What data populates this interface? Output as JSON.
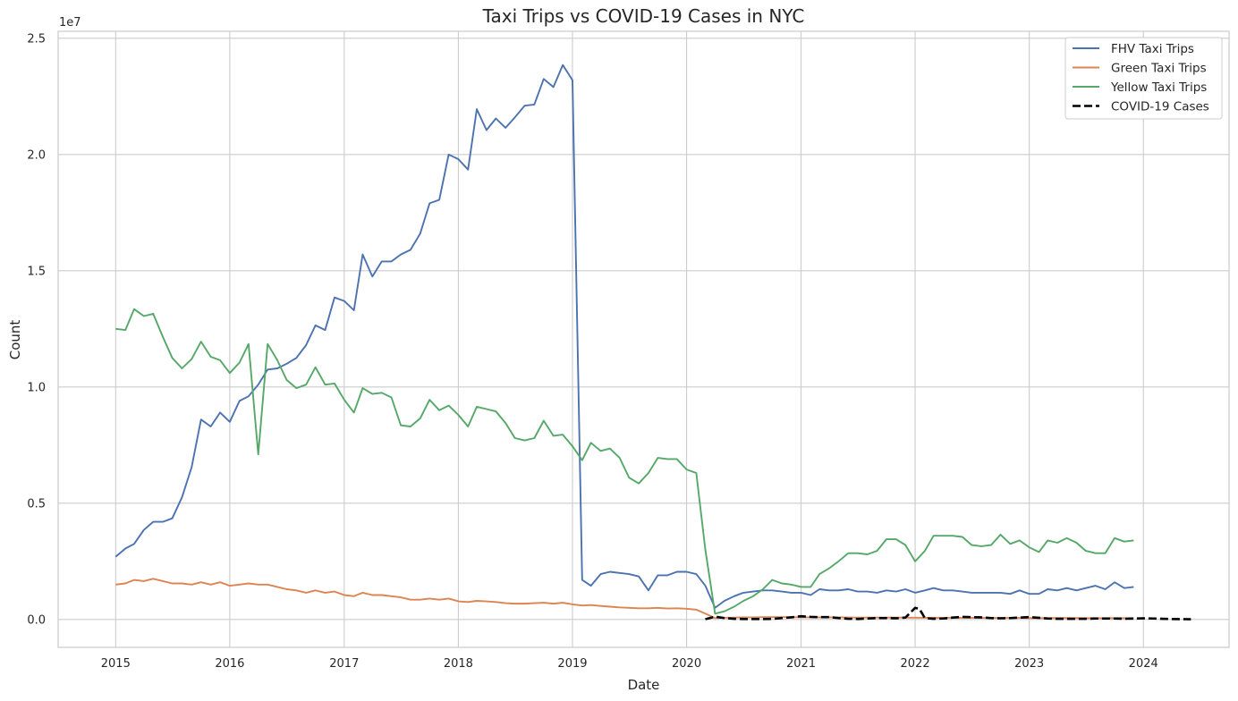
{
  "chart_data": {
    "type": "line",
    "title": "Taxi Trips vs COVID-19 Cases in NYC",
    "xlabel": "Date",
    "ylabel": "Count",
    "y_offset_label": "1e7",
    "y_ticks": [
      "0.0",
      "0.5",
      "1.0",
      "1.5",
      "2.0",
      "2.5"
    ],
    "x_ticks": [
      "2015",
      "2016",
      "2017",
      "2018",
      "2019",
      "2020",
      "2021",
      "2022",
      "2023",
      "2024"
    ],
    "xlim": [
      "2014-07-01",
      "2024-10-01"
    ],
    "ylim": [
      -1200000,
      25300000
    ],
    "grid": true,
    "legend_position": "top-right",
    "series": [
      {
        "name": "FHV Taxi Trips",
        "color": "#4c72b0",
        "style": "solid",
        "x": [
          "2015-01",
          "2015-02",
          "2015-03",
          "2015-04",
          "2015-05",
          "2015-06",
          "2015-07",
          "2015-08",
          "2015-09",
          "2015-10",
          "2015-11",
          "2015-12",
          "2016-01",
          "2016-02",
          "2016-03",
          "2016-04",
          "2016-05",
          "2016-06",
          "2016-07",
          "2016-08",
          "2016-09",
          "2016-10",
          "2016-11",
          "2016-12",
          "2017-01",
          "2017-02",
          "2017-03",
          "2017-04",
          "2017-05",
          "2017-06",
          "2017-07",
          "2017-08",
          "2017-09",
          "2017-10",
          "2017-11",
          "2017-12",
          "2018-01",
          "2018-02",
          "2018-03",
          "2018-04",
          "2018-05",
          "2018-06",
          "2018-07",
          "2018-08",
          "2018-09",
          "2018-10",
          "2018-11",
          "2018-12",
          "2019-01",
          "2019-02",
          "2019-03",
          "2019-04",
          "2019-05",
          "2019-06",
          "2019-07",
          "2019-08",
          "2019-09",
          "2019-10",
          "2019-11",
          "2019-12",
          "2020-01",
          "2020-02",
          "2020-03",
          "2020-04",
          "2020-05",
          "2020-06",
          "2020-07",
          "2020-08",
          "2020-09",
          "2020-10",
          "2020-11",
          "2020-12",
          "2021-01",
          "2021-02",
          "2021-03",
          "2021-04",
          "2021-05",
          "2021-06",
          "2021-07",
          "2021-08",
          "2021-09",
          "2021-10",
          "2021-11",
          "2021-12",
          "2022-01",
          "2022-02",
          "2022-03",
          "2022-04",
          "2022-05",
          "2022-06",
          "2022-07",
          "2022-08",
          "2022-09",
          "2022-10",
          "2022-11",
          "2022-12",
          "2023-01",
          "2023-02",
          "2023-03",
          "2023-04",
          "2023-05",
          "2023-06",
          "2023-07",
          "2023-08",
          "2023-09",
          "2023-10",
          "2023-11",
          "2023-12"
        ],
        "values": [
          2700000,
          3050000,
          3250000,
          3850000,
          4200000,
          4200000,
          4350000,
          5250000,
          6550000,
          8600000,
          8300000,
          8900000,
          8500000,
          9400000,
          9600000,
          10100000,
          10750000,
          10800000,
          11000000,
          11250000,
          11800000,
          12650000,
          12450000,
          13850000,
          13700000,
          13300000,
          15700000,
          14750000,
          15400000,
          15400000,
          15700000,
          15900000,
          16600000,
          17900000,
          18050000,
          20000000,
          19800000,
          19350000,
          21950000,
          21050000,
          21550000,
          21150000,
          21600000,
          22100000,
          22150000,
          23250000,
          22900000,
          23850000,
          23200000,
          1700000,
          1450000,
          1950000,
          2050000,
          2000000,
          1950000,
          1850000,
          1250000,
          1900000,
          1900000,
          2050000,
          2050000,
          1950000,
          1450000,
          500000,
          800000,
          1000000,
          1150000,
          1200000,
          1250000,
          1250000,
          1200000,
          1150000,
          1150000,
          1050000,
          1300000,
          1250000,
          1250000,
          1300000,
          1200000,
          1200000,
          1150000,
          1250000,
          1200000,
          1300000,
          1150000,
          1250000,
          1350000,
          1250000,
          1250000,
          1200000,
          1150000,
          1150000,
          1150000,
          1150000,
          1100000,
          1250000,
          1100000,
          1100000,
          1300000,
          1250000,
          1350000,
          1250000,
          1350000,
          1450000,
          1300000,
          1600000,
          1350000,
          1400000
        ]
      },
      {
        "name": "Green Taxi Trips",
        "color": "#dd8452",
        "style": "solid",
        "x": [
          "2015-01",
          "2015-02",
          "2015-03",
          "2015-04",
          "2015-05",
          "2015-06",
          "2015-07",
          "2015-08",
          "2015-09",
          "2015-10",
          "2015-11",
          "2015-12",
          "2016-01",
          "2016-02",
          "2016-03",
          "2016-04",
          "2016-05",
          "2016-06",
          "2016-07",
          "2016-08",
          "2016-09",
          "2016-10",
          "2016-11",
          "2016-12",
          "2017-01",
          "2017-02",
          "2017-03",
          "2017-04",
          "2017-05",
          "2017-06",
          "2017-07",
          "2017-08",
          "2017-09",
          "2017-10",
          "2017-11",
          "2017-12",
          "2018-01",
          "2018-02",
          "2018-03",
          "2018-04",
          "2018-05",
          "2018-06",
          "2018-07",
          "2018-08",
          "2018-09",
          "2018-10",
          "2018-11",
          "2018-12",
          "2019-01",
          "2019-02",
          "2019-03",
          "2019-04",
          "2019-05",
          "2019-06",
          "2019-07",
          "2019-08",
          "2019-09",
          "2019-10",
          "2019-11",
          "2019-12",
          "2020-01",
          "2020-02",
          "2020-03",
          "2020-04",
          "2020-05",
          "2020-06",
          "2020-07",
          "2020-08",
          "2020-09",
          "2020-10",
          "2020-11",
          "2020-12",
          "2021-01",
          "2021-02",
          "2021-03",
          "2021-04",
          "2021-05",
          "2021-06",
          "2021-07",
          "2021-08",
          "2021-09",
          "2021-10",
          "2021-11",
          "2021-12",
          "2022-01",
          "2022-02",
          "2022-03",
          "2022-04",
          "2022-05",
          "2022-06",
          "2022-07",
          "2022-08",
          "2022-09",
          "2022-10",
          "2022-11",
          "2022-12",
          "2023-01",
          "2023-02",
          "2023-03",
          "2023-04",
          "2023-05",
          "2023-06",
          "2023-07",
          "2023-08",
          "2023-09",
          "2023-10",
          "2023-11",
          "2023-12"
        ],
        "values": [
          1500000,
          1550000,
          1700000,
          1650000,
          1750000,
          1650000,
          1550000,
          1550000,
          1500000,
          1600000,
          1500000,
          1600000,
          1450000,
          1500000,
          1550000,
          1500000,
          1500000,
          1400000,
          1300000,
          1250000,
          1150000,
          1250000,
          1150000,
          1200000,
          1050000,
          1000000,
          1150000,
          1050000,
          1050000,
          1000000,
          950000,
          850000,
          850000,
          900000,
          850000,
          900000,
          780000,
          750000,
          800000,
          780000,
          750000,
          700000,
          680000,
          680000,
          700000,
          720000,
          680000,
          720000,
          650000,
          600000,
          620000,
          580000,
          550000,
          520000,
          500000,
          480000,
          480000,
          500000,
          470000,
          480000,
          460000,
          420000,
          250000,
          60000,
          70000,
          80000,
          90000,
          90000,
          100000,
          100000,
          100000,
          100000,
          90000,
          90000,
          90000,
          90000,
          90000,
          85000,
          80000,
          80000,
          80000,
          80000,
          80000,
          80000,
          75000,
          70000,
          75000,
          70000,
          70000,
          70000,
          70000,
          65000,
          65000,
          65000,
          65000,
          65000,
          60000,
          60000,
          60000,
          60000,
          60000,
          60000,
          55000,
          55000,
          55000,
          55000,
          55000,
          55000
        ]
      },
      {
        "name": "Yellow Taxi Trips",
        "color": "#55a868",
        "style": "solid",
        "x": [
          "2015-01",
          "2015-02",
          "2015-03",
          "2015-04",
          "2015-05",
          "2015-06",
          "2015-07",
          "2015-08",
          "2015-09",
          "2015-10",
          "2015-11",
          "2015-12",
          "2016-01",
          "2016-02",
          "2016-03",
          "2016-04",
          "2016-05",
          "2016-06",
          "2016-07",
          "2016-08",
          "2016-09",
          "2016-10",
          "2016-11",
          "2016-12",
          "2017-01",
          "2017-02",
          "2017-03",
          "2017-04",
          "2017-05",
          "2017-06",
          "2017-07",
          "2017-08",
          "2017-09",
          "2017-10",
          "2017-11",
          "2017-12",
          "2018-01",
          "2018-02",
          "2018-03",
          "2018-04",
          "2018-05",
          "2018-06",
          "2018-07",
          "2018-08",
          "2018-09",
          "2018-10",
          "2018-11",
          "2018-12",
          "2019-01",
          "2019-02",
          "2019-03",
          "2019-04",
          "2019-05",
          "2019-06",
          "2019-07",
          "2019-08",
          "2019-09",
          "2019-10",
          "2019-11",
          "2019-12",
          "2020-01",
          "2020-02",
          "2020-03",
          "2020-04",
          "2020-05",
          "2020-06",
          "2020-07",
          "2020-08",
          "2020-09",
          "2020-10",
          "2020-11",
          "2020-12",
          "2021-01",
          "2021-02",
          "2021-03",
          "2021-04",
          "2021-05",
          "2021-06",
          "2021-07",
          "2021-08",
          "2021-09",
          "2021-10",
          "2021-11",
          "2021-12",
          "2022-01",
          "2022-02",
          "2022-03",
          "2022-04",
          "2022-05",
          "2022-06",
          "2022-07",
          "2022-08",
          "2022-09",
          "2022-10",
          "2022-11",
          "2022-12",
          "2023-01",
          "2023-02",
          "2023-03",
          "2023-04",
          "2023-05",
          "2023-06",
          "2023-07",
          "2023-08",
          "2023-09",
          "2023-10",
          "2023-11",
          "2023-12"
        ],
        "values": [
          12500000,
          12450000,
          13350000,
          13050000,
          13150000,
          12150000,
          11250000,
          10800000,
          11200000,
          11950000,
          11300000,
          11150000,
          10600000,
          11050000,
          11850000,
          7100000,
          11850000,
          11150000,
          10300000,
          9950000,
          10100000,
          10850000,
          10100000,
          10150000,
          9450000,
          8900000,
          9950000,
          9700000,
          9750000,
          9550000,
          8350000,
          8300000,
          8650000,
          9450000,
          9000000,
          9200000,
          8800000,
          8300000,
          9150000,
          9050000,
          8950000,
          8450000,
          7800000,
          7700000,
          7800000,
          8550000,
          7900000,
          7950000,
          7450000,
          6850000,
          7600000,
          7250000,
          7350000,
          6950000,
          6100000,
          5850000,
          6300000,
          6950000,
          6900000,
          6900000,
          6450000,
          6300000,
          3000000,
          250000,
          350000,
          550000,
          800000,
          1000000,
          1300000,
          1700000,
          1550000,
          1500000,
          1400000,
          1400000,
          1950000,
          2200000,
          2500000,
          2850000,
          2850000,
          2800000,
          2950000,
          3450000,
          3450000,
          3200000,
          2500000,
          2950000,
          3600000,
          3600000,
          3600000,
          3550000,
          3200000,
          3150000,
          3200000,
          3650000,
          3250000,
          3400000,
          3100000,
          2900000,
          3400000,
          3300000,
          3500000,
          3300000,
          2950000,
          2850000,
          2850000,
          3500000,
          3350000,
          3400000
        ]
      },
      {
        "name": "COVID-19 Cases",
        "color": "#000000",
        "style": "dashed",
        "x": [
          "2020-03-01",
          "2020-04-01",
          "2020-05-01",
          "2020-06-01",
          "2020-07-01",
          "2020-08-01",
          "2020-09-01",
          "2020-10-01",
          "2020-11-01",
          "2020-12-01",
          "2021-01-01",
          "2021-02-01",
          "2021-03-01",
          "2021-04-01",
          "2021-05-01",
          "2021-06-01",
          "2021-07-01",
          "2021-08-01",
          "2021-09-01",
          "2021-10-01",
          "2021-11-01",
          "2021-12-01",
          "2022-01-01",
          "2022-01-15",
          "2022-02-01",
          "2022-03-01",
          "2022-04-01",
          "2022-05-01",
          "2022-06-01",
          "2022-07-01",
          "2022-08-01",
          "2022-09-01",
          "2022-10-01",
          "2022-11-01",
          "2022-12-01",
          "2023-01-01",
          "2023-02-01",
          "2023-03-01",
          "2023-04-01",
          "2023-05-01",
          "2023-06-01",
          "2023-07-01",
          "2023-08-01",
          "2023-09-01",
          "2023-10-01",
          "2023-11-01",
          "2023-12-01",
          "2024-01-01",
          "2024-02-01",
          "2024-03-01",
          "2024-04-01",
          "2024-05-01",
          "2024-06-01"
        ],
        "values": [
          10000,
          120000,
          60000,
          30000,
          20000,
          20000,
          20000,
          25000,
          60000,
          90000,
          140000,
          110000,
          100000,
          100000,
          60000,
          30000,
          20000,
          40000,
          60000,
          60000,
          50000,
          80000,
          500000,
          450000,
          60000,
          30000,
          40000,
          80000,
          110000,
          100000,
          90000,
          60000,
          50000,
          60000,
          80000,
          100000,
          70000,
          40000,
          30000,
          30000,
          25000,
          30000,
          40000,
          40000,
          40000,
          30000,
          40000,
          50000,
          40000,
          30000,
          20000,
          15000,
          10000
        ]
      }
    ]
  }
}
